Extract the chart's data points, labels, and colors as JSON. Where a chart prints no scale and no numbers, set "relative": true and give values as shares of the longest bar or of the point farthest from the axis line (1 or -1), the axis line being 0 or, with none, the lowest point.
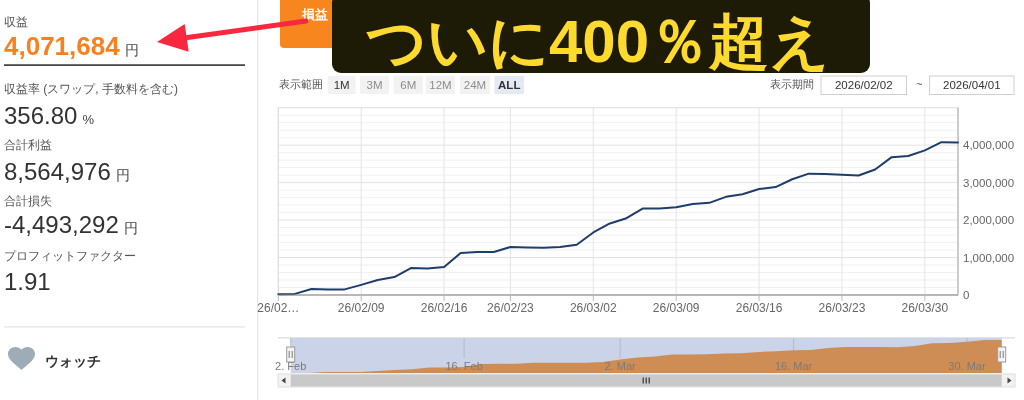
{
  "chart_data": [
    {
      "type": "other",
      "annotations": [
        "収益",
        "4,071,684",
        "円",
        "収益率 (スワップ, 手数料を含む)",
        "356.80",
        "%",
        "合計利益",
        "8,564,976",
        "円",
        "合計損失",
        "-4,493,292",
        "円",
        "プロフィットファクター",
        "1.91",
        "ウォッチ"
      ]
    },
    {
      "type": "line",
      "annotations": [
        "ついに400％超え",
        "損益",
        "表示範囲",
        "1M",
        "3M",
        "6M",
        "12M",
        "24M",
        "ALL",
        "表示期間",
        "2026/02/02",
        "~",
        "2026/04/01"
      ],
      "categories": [
        "26/02…",
        null,
        null,
        null,
        null,
        "26/02/09",
        null,
        null,
        null,
        null,
        "26/02/16",
        null,
        null,
        null,
        "26/02/23",
        null,
        null,
        null,
        null,
        "26/03/02",
        null,
        null,
        null,
        null,
        "26/03/09",
        null,
        null,
        null,
        null,
        "26/03/16",
        null,
        null,
        null,
        null,
        "26/03/23",
        null,
        null,
        null,
        null,
        "26/03/30",
        null,
        null
      ],
      "series": [
        {
          "color": "#1f3d6b",
          "values": [
            20000,
            30000,
            160000,
            150000,
            150000,
            270000,
            400000,
            480000,
            720000,
            710000,
            750000,
            1120000,
            1150000,
            1150000,
            1280000,
            1270000,
            1260000,
            1280000,
            1340000,
            1670000,
            1910000,
            2050000,
            2310000,
            2310000,
            2340000,
            2430000,
            2460000,
            2620000,
            2690000,
            2830000,
            2880000,
            3090000,
            3240000,
            3230000,
            3210000,
            3190000,
            3350000,
            3680000,
            3710000,
            3860000,
            4080000,
            4070000
          ]
        }
      ],
      "ylim": [
        0,
        5000000
      ],
      "yticks": [
        0,
        {
          "value": 200000,
          "label": null
        },
        {
          "value": 400000,
          "label": null
        },
        {
          "value": 600000,
          "label": null
        },
        {
          "value": 800000,
          "label": null
        },
        {
          "value": 1000000,
          "label": "1,000,000"
        },
        {
          "value": 1200000,
          "label": null
        },
        {
          "value": 1400000,
          "label": null
        },
        {
          "value": 1600000,
          "label": null
        },
        {
          "value": 1800000,
          "label": null
        },
        {
          "value": 2000000,
          "label": "2,000,000"
        },
        {
          "value": 2200000,
          "label": null
        },
        {
          "value": 2400000,
          "label": null
        },
        {
          "value": 2600000,
          "label": null
        },
        {
          "value": 2800000,
          "label": null
        },
        {
          "value": 3000000,
          "label": "3,000,000"
        },
        {
          "value": 3200000,
          "label": null
        },
        {
          "value": 3400000,
          "label": null
        },
        {
          "value": 3600000,
          "label": null
        },
        {
          "value": 3800000,
          "label": null
        },
        {
          "value": 4000000,
          "label": "4,000,000"
        },
        {
          "value": 4200000,
          "label": null
        },
        {
          "value": 4400000,
          "label": null
        },
        {
          "value": 4600000,
          "label": null
        },
        {
          "value": 4800000,
          "label": null
        }
      ],
      "grid": true
    },
    {
      "type": "area",
      "relative": true,
      "categories": [
        "2. Feb",
        null,
        null,
        null,
        null,
        null,
        null,
        null,
        null,
        null,
        "16. Feb",
        null,
        null,
        null,
        null,
        null,
        null,
        null,
        null,
        "2. Mar",
        null,
        null,
        null,
        null,
        null,
        null,
        null,
        null,
        null,
        "16. Mar",
        null,
        null,
        null,
        null,
        null,
        null,
        null,
        null,
        null,
        "30. Mar",
        null,
        null
      ],
      "series": [
        {
          "color": "#cd8d55",
          "values": [
            0,
            0,
            0.03,
            0.03,
            0.03,
            0.06,
            0.09,
            0.11,
            0.17,
            0.17,
            0.18,
            0.27,
            0.28,
            0.28,
            0.31,
            0.31,
            0.31,
            0.31,
            0.33,
            0.41,
            0.47,
            0.5,
            0.56,
            0.56,
            0.57,
            0.59,
            0.6,
            0.64,
            0.66,
            0.69,
            0.7,
            0.76,
            0.79,
            0.79,
            0.79,
            0.78,
            0.82,
            0.9,
            0.91,
            0.95,
            1,
            1
          ]
        }
      ],
      "grid": "x"
    }
  ]
}
